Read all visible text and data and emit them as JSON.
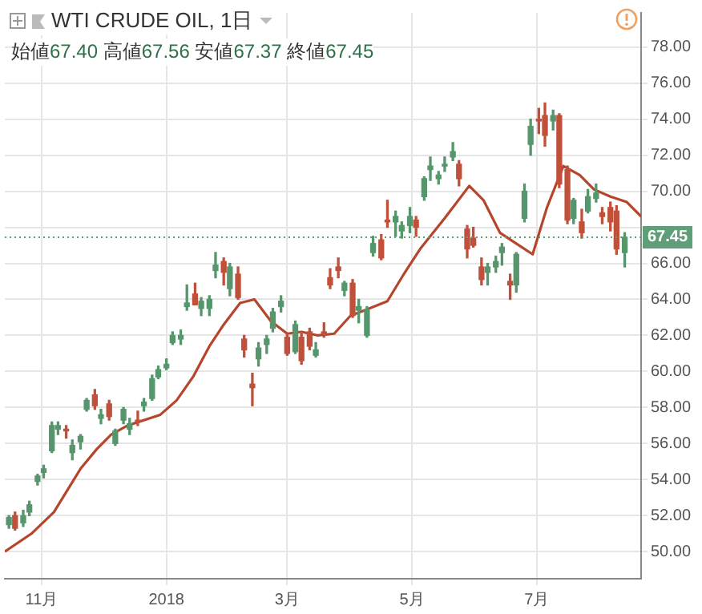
{
  "chart_data": {
    "type": "candlestick",
    "title": "WTI CRUDE OIL, 1日",
    "subtitle": "始値67.40 高値67.56 安値67.37 終値67.45",
    "x": [
      "2017-10-16",
      "2017-10-19",
      "2017-10-23",
      "2017-10-26",
      "2017-10-30",
      "2017-11-02",
      "2017-11-06",
      "2017-11-09",
      "2017-11-13",
      "2017-11-16",
      "2017-11-20",
      "2017-11-23",
      "2017-11-27",
      "2017-11-30",
      "2017-12-04",
      "2017-12-07",
      "2017-12-11",
      "2017-12-14",
      "2017-12-18",
      "2017-12-21",
      "2017-12-25",
      "2017-12-28",
      "2018-01-01",
      "2018-01-04",
      "2018-01-08",
      "2018-01-11",
      "2018-01-15",
      "2018-01-18",
      "2018-01-22",
      "2018-01-25",
      "2018-01-29",
      "2018-02-01",
      "2018-02-05",
      "2018-02-08",
      "2018-02-12",
      "2018-02-15",
      "2018-02-19",
      "2018-02-22",
      "2018-02-26",
      "2018-03-01",
      "2018-03-05",
      "2018-03-08",
      "2018-03-12",
      "2018-03-15",
      "2018-03-19",
      "2018-03-22",
      "2018-03-26",
      "2018-03-29",
      "2018-04-02",
      "2018-04-05",
      "2018-04-09",
      "2018-04-12",
      "2018-04-16",
      "2018-04-19",
      "2018-04-23",
      "2018-04-26",
      "2018-04-30",
      "2018-05-03",
      "2018-05-07",
      "2018-05-10",
      "2018-05-14",
      "2018-05-17",
      "2018-05-21",
      "2018-05-24",
      "2018-05-28",
      "2018-05-31",
      "2018-06-04",
      "2018-06-07",
      "2018-06-11",
      "2018-06-14",
      "2018-06-18",
      "2018-06-21",
      "2018-06-25",
      "2018-06-28",
      "2018-07-02",
      "2018-07-05",
      "2018-07-09",
      "2018-07-12",
      "2018-07-16",
      "2018-07-19",
      "2018-07-23",
      "2018-07-26",
      "2018-07-30",
      "2018-08-02",
      "2018-08-06",
      "2018-08-09",
      "2018-08-13"
    ],
    "ohlc": [
      [
        51.5,
        52.0,
        51.3,
        51.9
      ],
      [
        52.0,
        52.2,
        51.2,
        51.3
      ],
      [
        51.6,
        52.3,
        51.4,
        52.0
      ],
      [
        52.2,
        52.8,
        52.0,
        52.6
      ],
      [
        53.9,
        54.3,
        53.7,
        54.2
      ],
      [
        54.4,
        54.8,
        54.1,
        54.6
      ],
      [
        55.6,
        57.2,
        55.5,
        57.0
      ],
      [
        56.8,
        57.2,
        56.5,
        57.0
      ],
      [
        56.8,
        57.0,
        56.3,
        56.7
      ],
      [
        55.5,
        56.2,
        55.1,
        55.9
      ],
      [
        56.1,
        56.5,
        55.7,
        56.4
      ],
      [
        57.9,
        58.5,
        57.8,
        58.4
      ],
      [
        58.7,
        59.0,
        57.9,
        58.1
      ],
      [
        57.4,
        57.9,
        57.1,
        57.6
      ],
      [
        58.2,
        58.4,
        57.3,
        57.5
      ],
      [
        56.0,
        56.8,
        55.9,
        56.7
      ],
      [
        57.3,
        58.0,
        57.1,
        57.9
      ],
      [
        56.8,
        57.4,
        56.5,
        57.1
      ],
      [
        57.3,
        57.8,
        57.0,
        57.2
      ],
      [
        58.1,
        58.5,
        57.8,
        58.3
      ],
      [
        58.5,
        59.8,
        58.4,
        59.6
      ],
      [
        59.7,
        60.3,
        59.6,
        60.1
      ],
      [
        60.2,
        60.7,
        60.1,
        60.4
      ],
      [
        61.6,
        62.2,
        61.5,
        62.0
      ],
      [
        61.8,
        62.3,
        61.5,
        62.0
      ],
      [
        63.6,
        64.8,
        63.4,
        63.8
      ],
      [
        64.3,
        64.9,
        63.7,
        63.7
      ],
      [
        63.5,
        64.1,
        63.1,
        63.9
      ],
      [
        63.5,
        64.2,
        63.1,
        64.0
      ],
      [
        65.6,
        66.6,
        65.2,
        65.9
      ],
      [
        66.1,
        66.3,
        64.8,
        65.5
      ],
      [
        64.6,
        66.0,
        64.2,
        65.8
      ],
      [
        65.4,
        65.8,
        64.0,
        64.1
      ],
      [
        61.8,
        62.0,
        60.8,
        61.2
      ],
      [
        59.3,
        59.9,
        58.1,
        59.1
      ],
      [
        60.7,
        61.6,
        60.3,
        61.3
      ],
      [
        61.5,
        62.0,
        61.0,
        61.8
      ],
      [
        62.4,
        63.5,
        62.2,
        63.3
      ],
      [
        63.6,
        64.2,
        63.3,
        63.9
      ],
      [
        61.9,
        62.1,
        60.9,
        61.0
      ],
      [
        61.1,
        62.8,
        61.0,
        62.6
      ],
      [
        61.9,
        62.2,
        60.4,
        60.6
      ],
      [
        62.2,
        62.4,
        61.2,
        61.4
      ],
      [
        60.9,
        61.6,
        60.8,
        61.2
      ],
      [
        62.2,
        62.7,
        61.9,
        62.1
      ],
      [
        65.2,
        65.7,
        64.6,
        64.8
      ],
      [
        65.8,
        66.3,
        65.2,
        65.6
      ],
      [
        64.5,
        65.0,
        64.2,
        64.9
      ],
      [
        64.9,
        65.1,
        63.0,
        63.1
      ],
      [
        63.4,
        64.0,
        62.7,
        63.6
      ],
      [
        62.0,
        63.6,
        61.9,
        63.4
      ],
      [
        66.6,
        67.5,
        66.4,
        67.1
      ],
      [
        67.3,
        67.6,
        66.2,
        66.3
      ],
      [
        68.4,
        69.5,
        68.0,
        68.3
      ],
      [
        68.3,
        68.9,
        67.5,
        68.6
      ],
      [
        67.8,
        68.3,
        67.4,
        68.1
      ],
      [
        68.1,
        69.1,
        67.7,
        68.6
      ],
      [
        68.4,
        68.6,
        67.5,
        68.0
      ],
      [
        69.7,
        70.8,
        69.5,
        70.7
      ],
      [
        71.2,
        71.9,
        70.6,
        71.4
      ],
      [
        70.7,
        71.1,
        70.4,
        70.9
      ],
      [
        71.4,
        71.9,
        71.1,
        71.5
      ],
      [
        71.9,
        72.7,
        71.7,
        72.2
      ],
      [
        71.5,
        71.7,
        70.3,
        70.7
      ],
      [
        67.9,
        68.1,
        66.3,
        66.8
      ],
      [
        67.4,
        68.0,
        66.9,
        67.0
      ],
      [
        65.8,
        66.3,
        64.8,
        65.1
      ],
      [
        65.5,
        66.0,
        64.8,
        65.8
      ],
      [
        65.8,
        66.4,
        65.5,
        66.1
      ],
      [
        66.6,
        67.1,
        65.9,
        66.9
      ],
      [
        65.0,
        65.4,
        64.0,
        64.8
      ],
      [
        64.8,
        66.6,
        64.4,
        66.5
      ],
      [
        68.5,
        70.4,
        68.3,
        70.0
      ],
      [
        72.6,
        74.0,
        72.0,
        73.6
      ],
      [
        74.0,
        74.6,
        73.2,
        73.9
      ],
      [
        74.2,
        74.9,
        72.5,
        73.1
      ],
      [
        73.9,
        74.5,
        73.4,
        74.2
      ],
      [
        74.2,
        74.3,
        70.2,
        70.4
      ],
      [
        71.2,
        71.4,
        68.2,
        68.4
      ],
      [
        68.5,
        69.6,
        68.2,
        69.5
      ],
      [
        68.3,
        69.0,
        67.4,
        67.7
      ],
      [
        68.9,
        70.1,
        68.8,
        69.7
      ],
      [
        69.6,
        70.4,
        69.4,
        69.9
      ],
      [
        68.8,
        69.1,
        68.2,
        68.6
      ],
      [
        69.1,
        69.4,
        67.8,
        68.3
      ],
      [
        68.9,
        69.2,
        66.5,
        66.8
      ],
      [
        66.6,
        67.7,
        65.8,
        67.45
      ]
    ],
    "colors": [
      "#56966c",
      "#c0503a",
      "#56966c",
      "#56966c",
      "#56966c",
      "#56966c",
      "#56966c",
      "#56966c",
      "#c0503a",
      "#56966c",
      "#56966c",
      "#56966c",
      "#c0503a",
      "#56966c",
      "#c0503a",
      "#56966c",
      "#56966c",
      "#56966c",
      "#c0503a",
      "#56966c",
      "#56966c",
      "#56966c",
      "#56966c",
      "#56966c",
      "#56966c",
      "#56966c",
      "#c0503a",
      "#56966c",
      "#56966c",
      "#56966c",
      "#c0503a",
      "#56966c",
      "#c0503a",
      "#c0503a",
      "#c0503a",
      "#56966c",
      "#56966c",
      "#56966c",
      "#56966c",
      "#c0503a",
      "#56966c",
      "#c0503a",
      "#c0503a",
      "#56966c",
      "#c0503a",
      "#c0503a",
      "#c0503a",
      "#56966c",
      "#c0503a",
      "#56966c",
      "#56966c",
      "#56966c",
      "#c0503a",
      "#c0503a",
      "#56966c",
      "#56966c",
      "#56966c",
      "#c0503a",
      "#56966c",
      "#56966c",
      "#56966c",
      "#56966c",
      "#56966c",
      "#c0503a",
      "#c0503a",
      "#c0503a",
      "#c0503a",
      "#56966c",
      "#56966c",
      "#56966c",
      "#c0503a",
      "#56966c",
      "#56966c",
      "#56966c",
      "#c0503a",
      "#c0503a",
      "#56966c",
      "#c0503a",
      "#c0503a",
      "#56966c",
      "#c0503a",
      "#56966c",
      "#56966c",
      "#c0503a",
      "#c0503a",
      "#c0503a",
      "#56966c"
    ],
    "series": [
      {
        "type": "line",
        "color": "#b5452c",
        "x": [
          "2017-10-14",
          "2017-10-27",
          "2017-11-07",
          "2017-11-20",
          "2017-11-28",
          "2017-12-05",
          "2017-12-13",
          "2017-12-29",
          "2018-01-06",
          "2018-01-14",
          "2018-01-22",
          "2018-01-29",
          "2018-02-06",
          "2018-02-13",
          "2018-02-21",
          "2018-03-01",
          "2018-03-08",
          "2018-03-16",
          "2018-03-24",
          "2018-04-01",
          "2018-04-08",
          "2018-04-19",
          "2018-04-27",
          "2018-05-05",
          "2018-05-17",
          "2018-05-29",
          "2018-06-05",
          "2018-06-13",
          "2018-06-21",
          "2018-06-29",
          "2018-07-06",
          "2018-07-14",
          "2018-07-22",
          "2018-07-29",
          "2018-08-06",
          "2018-08-14",
          "2018-08-21"
        ],
        "values": [
          50.0,
          51.0,
          52.2,
          54.6,
          55.7,
          56.5,
          57.0,
          57.6,
          58.4,
          59.7,
          61.4,
          62.6,
          63.8,
          64.0,
          62.8,
          62.1,
          62.2,
          62.0,
          62.1,
          63.1,
          63.4,
          63.9,
          65.4,
          66.8,
          68.5,
          70.3,
          69.5,
          67.7,
          67.1,
          66.5,
          69.1,
          71.4,
          70.9,
          70.1,
          69.7,
          69.4,
          68.6
        ]
      }
    ],
    "xlim": [
      "2017-10-14",
      "2018-08-21"
    ],
    "xticks": [
      {
        "value": "2017-11-01",
        "label": "11月"
      },
      {
        "value": "2018-01-01",
        "label": "2018"
      },
      {
        "value": "2018-03-01",
        "label": "3月"
      },
      {
        "value": "2018-05-01",
        "label": "5月"
      },
      {
        "value": "2018-07-01",
        "label": "7月"
      }
    ],
    "ylim": [
      48.5,
      79.9
    ],
    "yticks": [
      {
        "value": 50,
        "label": "50.00"
      },
      {
        "value": 52,
        "label": "52.00"
      },
      {
        "value": 54,
        "label": "54.00"
      },
      {
        "value": 56,
        "label": "56.00"
      },
      {
        "value": 58,
        "label": "58.00"
      },
      {
        "value": 60,
        "label": "60.00"
      },
      {
        "value": 62,
        "label": "62.00"
      },
      {
        "value": 64,
        "label": "64.00"
      },
      {
        "value": 66,
        "label": "66.00"
      },
      {
        "value": 68,
        "label": null
      },
      {
        "value": 70,
        "label": "70.00"
      },
      {
        "value": 72,
        "label": "72.00"
      },
      {
        "value": 74,
        "label": "74.00"
      },
      {
        "value": 76,
        "label": "76.00"
      },
      {
        "value": 78,
        "label": "78.00"
      }
    ],
    "ref_lines": [
      {
        "axis": "y",
        "value": 67.45,
        "label": "67.45",
        "color": "#5e9e78",
        "line_style": "dotted"
      }
    ],
    "grid": true,
    "legend": false
  }
}
